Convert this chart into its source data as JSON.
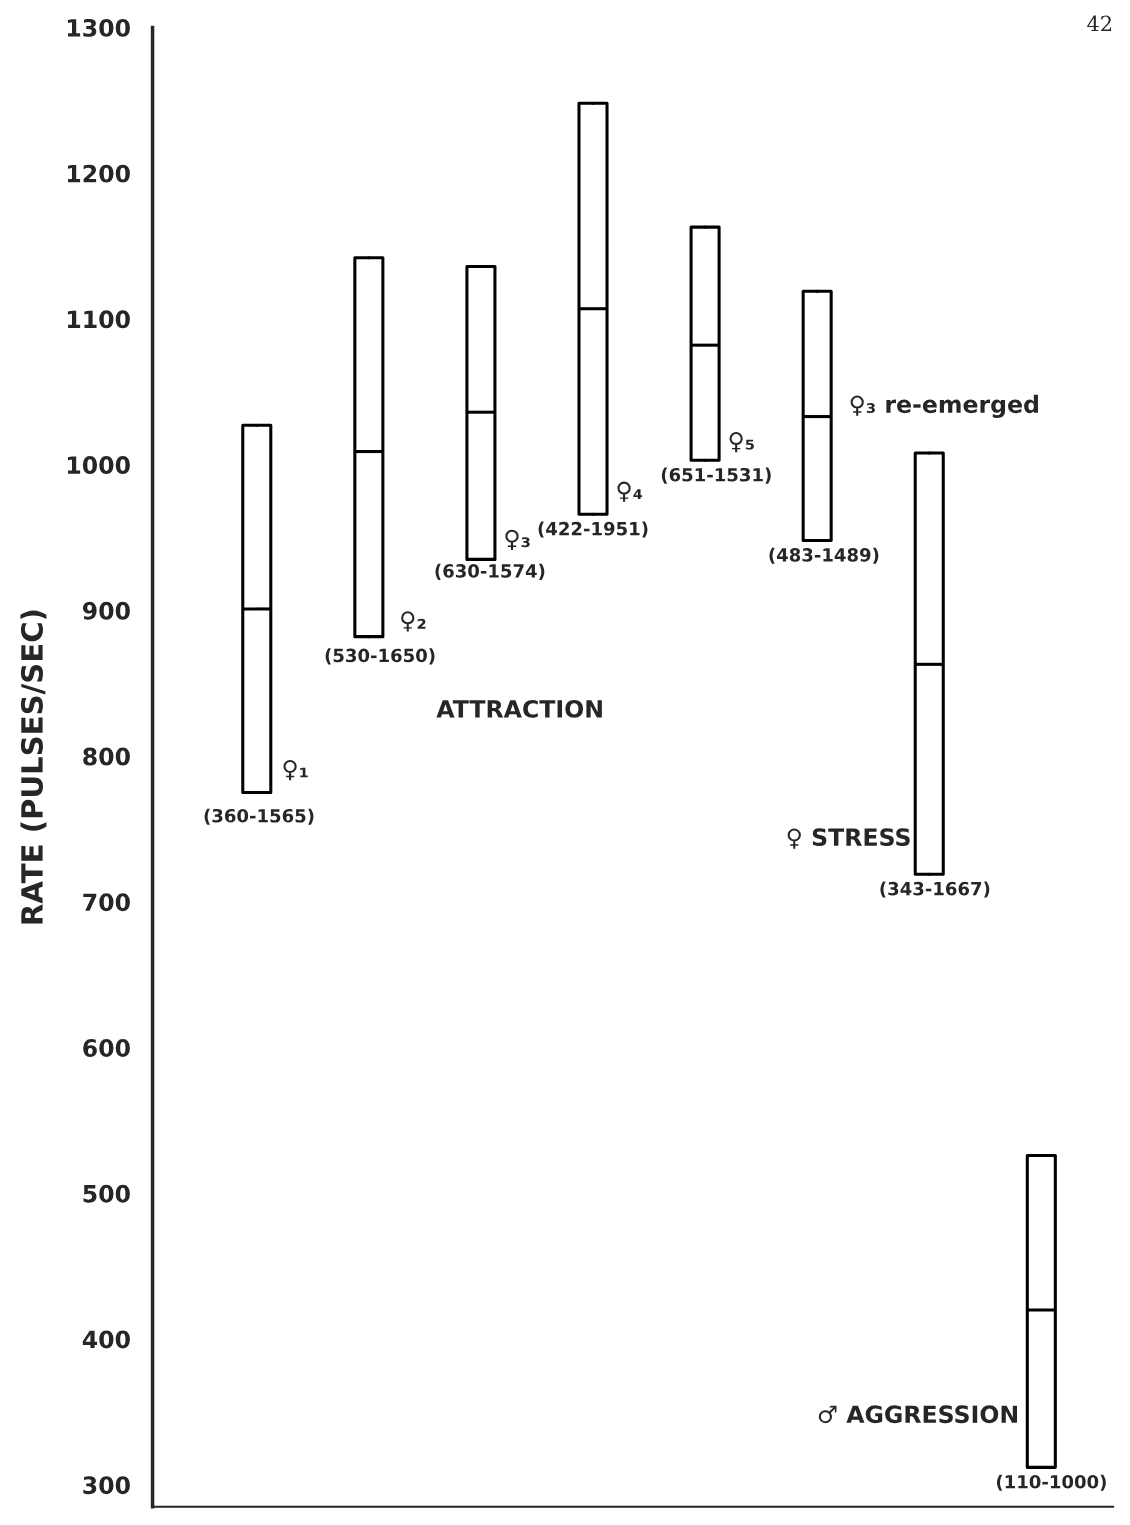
{
  "chart_data": {
    "type": "box",
    "ylabel": "RATE (PULSES/SEC)",
    "categories": [
      null,
      null,
      null,
      null,
      null,
      null,
      null,
      null
    ],
    "boxes": [
      {
        "low": 775,
        "q1": 775,
        "median": 901,
        "q3": 1027,
        "high": 1027
      },
      {
        "low": 882,
        "q1": 882,
        "median": 1009,
        "q3": 1142,
        "high": 1142
      },
      {
        "low": 935,
        "q1": 935,
        "median": 1036,
        "q3": 1136,
        "high": 1136
      },
      {
        "low": 966,
        "q1": 966,
        "median": 1107,
        "q3": 1248,
        "high": 1248
      },
      {
        "low": 1003,
        "q1": 1003,
        "median": 1082,
        "q3": 1163,
        "high": 1163
      },
      {
        "low": 948,
        "q1": 948,
        "median": 1033,
        "q3": 1119,
        "high": 1119
      },
      {
        "low": 719,
        "q1": 719,
        "median": 863,
        "q3": 1008,
        "high": 1008
      },
      {
        "low": 312,
        "q1": 312,
        "median": 420,
        "q3": 526,
        "high": 526
      }
    ],
    "ylim": [
      285,
      1300
    ],
    "yticks": [
      300,
      400,
      500,
      600,
      700,
      800,
      900,
      1000,
      1100,
      1200,
      1300
    ],
    "grid": false,
    "tick_labels": "y",
    "annotations": [
      "♀₁",
      "(360-1565)",
      "♀₂",
      "(530-1650)",
      "♀₃",
      "(630-1574)",
      "♀₄",
      "(422-1951)",
      "♀₅",
      "(651-1531)",
      "♀₃ re-emerged",
      "(483-1489)",
      "ATTRACTION",
      "♀ STRESS",
      "(343-1667)",
      "♂ AGGRESSION",
      "(110-1000)",
      "42"
    ]
  }
}
